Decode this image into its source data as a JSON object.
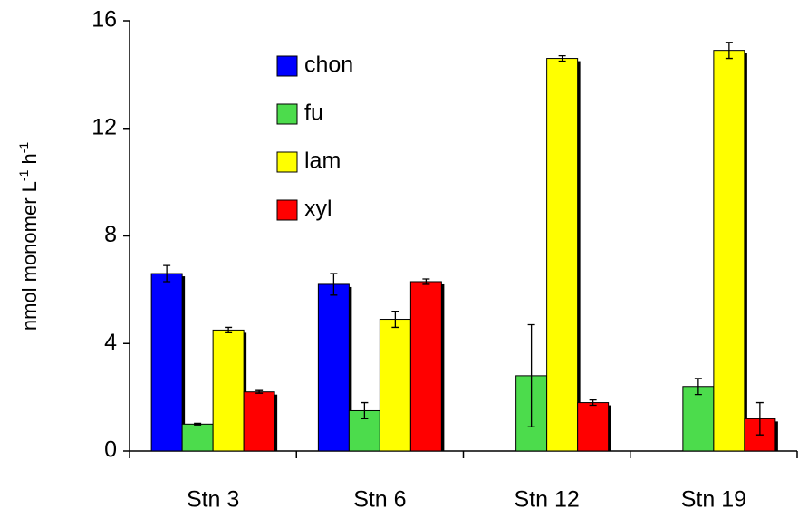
{
  "chart_data": {
    "type": "bar",
    "ylabel_parts": [
      "nmol monomer L",
      "-1",
      " h",
      "-1"
    ],
    "categories": [
      "Stn 3",
      "Stn 6",
      "Stn 12",
      "Stn 19"
    ],
    "series": [
      {
        "name": "chon",
        "color": "#0000ff",
        "values": [
          6.6,
          6.2,
          null,
          null
        ],
        "errors": [
          0.3,
          0.4,
          null,
          null
        ]
      },
      {
        "name": "fu",
        "color": "#4cdc4c",
        "values": [
          1.0,
          1.5,
          2.8,
          2.4
        ],
        "errors": [
          0.03,
          0.3,
          1.9,
          0.3
        ]
      },
      {
        "name": "lam",
        "color": "#ffff00",
        "values": [
          4.5,
          4.9,
          14.6,
          14.9
        ],
        "errors": [
          0.1,
          0.3,
          0.1,
          0.3
        ]
      },
      {
        "name": "xyl",
        "color": "#ff0000",
        "values": [
          2.2,
          6.3,
          1.8,
          1.2
        ],
        "errors": [
          0.05,
          0.1,
          0.1,
          0.6
        ]
      }
    ],
    "ylim": [
      0,
      16
    ],
    "yticks": [
      0,
      4,
      8,
      12,
      16
    ]
  }
}
